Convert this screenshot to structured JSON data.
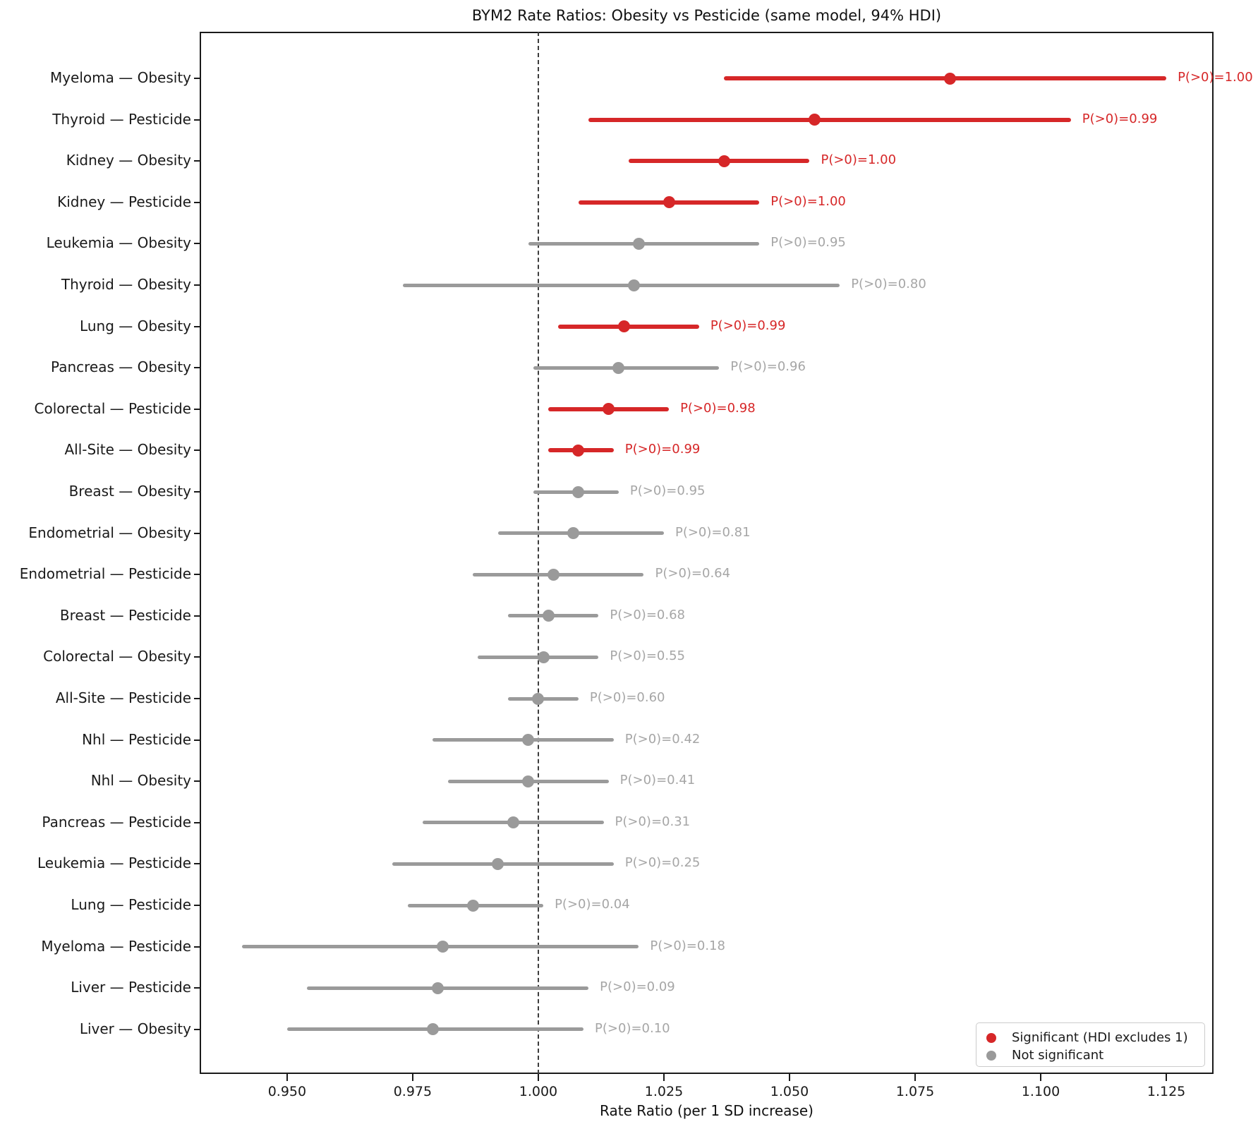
{
  "chart_data": {
    "type": "scatter",
    "subtype": "forest-plot",
    "title": "BYM2 Rate Ratios: Obesity vs Pesticide (same model, 94% HDI)",
    "xlabel": "Rate Ratio (per 1 SD increase)",
    "xlim": [
      0.9326,
      1.1344
    ],
    "x_tick_values": [
      0.95,
      0.975,
      1.0,
      1.025,
      1.05,
      1.075,
      1.1,
      1.125
    ],
    "x_tick_labels": [
      "0.950",
      "0.975",
      "1.000",
      "1.025",
      "1.050",
      "1.075",
      "1.100",
      "1.125"
    ],
    "reference_line_x": 1.0,
    "grid": false,
    "interval_type": "94% HDI",
    "colors": {
      "significant": "#d62728",
      "not_significant": "#9a9a9a",
      "annotation_not_significant": "#a6a6a6",
      "reference_line": "#3c3c3c",
      "spine": "#1a1a1a"
    },
    "legend": {
      "position": "lower-right",
      "entries": [
        {
          "label": "Significant (HDI excludes 1)",
          "color": "#d62728"
        },
        {
          "label": "Not significant",
          "color": "#9a9a9a"
        }
      ]
    },
    "rows": [
      {
        "label": "Myeloma — Obesity",
        "mean": 1.082,
        "hdi_low": 1.037,
        "hdi_high": 1.125,
        "p_label": "P(>0)=1.00",
        "significant": true
      },
      {
        "label": "Thyroid — Pesticide",
        "mean": 1.055,
        "hdi_low": 1.01,
        "hdi_high": 1.106,
        "p_label": "P(>0)=0.99",
        "significant": true
      },
      {
        "label": "Kidney — Obesity",
        "mean": 1.037,
        "hdi_low": 1.018,
        "hdi_high": 1.054,
        "p_label": "P(>0)=1.00",
        "significant": true
      },
      {
        "label": "Kidney — Pesticide",
        "mean": 1.026,
        "hdi_low": 1.008,
        "hdi_high": 1.044,
        "p_label": "P(>0)=1.00",
        "significant": true
      },
      {
        "label": "Leukemia — Obesity",
        "mean": 1.02,
        "hdi_low": 0.998,
        "hdi_high": 1.044,
        "p_label": "P(>0)=0.95",
        "significant": false
      },
      {
        "label": "Thyroid — Obesity",
        "mean": 1.019,
        "hdi_low": 0.973,
        "hdi_high": 1.06,
        "p_label": "P(>0)=0.80",
        "significant": false
      },
      {
        "label": "Lung — Obesity",
        "mean": 1.017,
        "hdi_low": 1.004,
        "hdi_high": 1.032,
        "p_label": "P(>0)=0.99",
        "significant": true
      },
      {
        "label": "Pancreas — Obesity",
        "mean": 1.016,
        "hdi_low": 0.999,
        "hdi_high": 1.036,
        "p_label": "P(>0)=0.96",
        "significant": false
      },
      {
        "label": "Colorectal — Pesticide",
        "mean": 1.014,
        "hdi_low": 1.002,
        "hdi_high": 1.026,
        "p_label": "P(>0)=0.98",
        "significant": true
      },
      {
        "label": "All-Site — Obesity",
        "mean": 1.008,
        "hdi_low": 1.002,
        "hdi_high": 1.015,
        "p_label": "P(>0)=0.99",
        "significant": true
      },
      {
        "label": "Breast — Obesity",
        "mean": 1.008,
        "hdi_low": 0.999,
        "hdi_high": 1.016,
        "p_label": "P(>0)=0.95",
        "significant": false
      },
      {
        "label": "Endometrial — Obesity",
        "mean": 1.007,
        "hdi_low": 0.992,
        "hdi_high": 1.025,
        "p_label": "P(>0)=0.81",
        "significant": false
      },
      {
        "label": "Endometrial — Pesticide",
        "mean": 1.003,
        "hdi_low": 0.987,
        "hdi_high": 1.021,
        "p_label": "P(>0)=0.64",
        "significant": false
      },
      {
        "label": "Breast — Pesticide",
        "mean": 1.002,
        "hdi_low": 0.994,
        "hdi_high": 1.012,
        "p_label": "P(>0)=0.68",
        "significant": false
      },
      {
        "label": "Colorectal — Obesity",
        "mean": 1.001,
        "hdi_low": 0.988,
        "hdi_high": 1.012,
        "p_label": "P(>0)=0.55",
        "significant": false
      },
      {
        "label": "All-Site — Pesticide",
        "mean": 1.0,
        "hdi_low": 0.994,
        "hdi_high": 1.008,
        "p_label": "P(>0)=0.60",
        "significant": false
      },
      {
        "label": "Nhl — Pesticide",
        "mean": 0.998,
        "hdi_low": 0.979,
        "hdi_high": 1.015,
        "p_label": "P(>0)=0.42",
        "significant": false
      },
      {
        "label": "Nhl — Obesity",
        "mean": 0.998,
        "hdi_low": 0.982,
        "hdi_high": 1.014,
        "p_label": "P(>0)=0.41",
        "significant": false
      },
      {
        "label": "Pancreas — Pesticide",
        "mean": 0.995,
        "hdi_low": 0.977,
        "hdi_high": 1.013,
        "p_label": "P(>0)=0.31",
        "significant": false
      },
      {
        "label": "Leukemia — Pesticide",
        "mean": 0.992,
        "hdi_low": 0.971,
        "hdi_high": 1.015,
        "p_label": "P(>0)=0.25",
        "significant": false
      },
      {
        "label": "Lung — Pesticide",
        "mean": 0.987,
        "hdi_low": 0.974,
        "hdi_high": 1.001,
        "p_label": "P(>0)=0.04",
        "significant": false
      },
      {
        "label": "Myeloma — Pesticide",
        "mean": 0.981,
        "hdi_low": 0.941,
        "hdi_high": 1.02,
        "p_label": "P(>0)=0.18",
        "significant": false
      },
      {
        "label": "Liver — Pesticide",
        "mean": 0.98,
        "hdi_low": 0.954,
        "hdi_high": 1.01,
        "p_label": "P(>0)=0.09",
        "significant": false
      },
      {
        "label": "Liver — Obesity",
        "mean": 0.979,
        "hdi_low": 0.95,
        "hdi_high": 1.009,
        "p_label": "P(>0)=0.10",
        "significant": false
      }
    ]
  }
}
